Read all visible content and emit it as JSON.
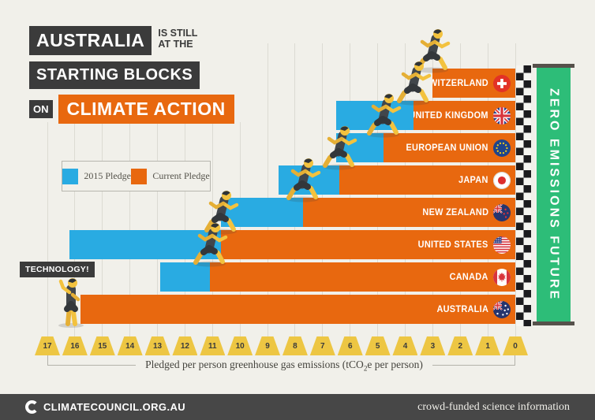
{
  "title": {
    "box1": "AUSTRALIA",
    "tag_top": "IS STILL",
    "tag_bottom": "AT THE",
    "box2": "STARTING BLOCKS",
    "on": "ON",
    "box3": "CLIMATE ACTION"
  },
  "legend": {
    "items": [
      {
        "label": "2015 Pledge",
        "color": "#29abe2"
      },
      {
        "label": "Current Pledge",
        "color": "#e8680f"
      }
    ]
  },
  "chart_data": {
    "type": "bar",
    "orientation": "horizontal",
    "title": "Australia is still at the starting blocks on climate action",
    "xlabel": "Pledged per person greenhouse gas emissions (tCO2e per person)",
    "x_axis": {
      "ticks": [
        17,
        16,
        15,
        14,
        13,
        12,
        11,
        10,
        9,
        8,
        7,
        6,
        5,
        4,
        3,
        2,
        1,
        0
      ],
      "reversed": true,
      "range": [
        17,
        0
      ]
    },
    "grid": true,
    "legend_position": "upper-left",
    "categories": [
      "Switzerland",
      "United Kingdom",
      "European Union",
      "Japan",
      "New Zealand",
      "United States",
      "Canada",
      "Australia"
    ],
    "series": [
      {
        "name": "2015 Pledge",
        "color": "#29abe2",
        "values": [
          null,
          6.5,
          6.5,
          8.6,
          10.7,
          16.2,
          12.9,
          null
        ]
      },
      {
        "name": "Current Pledge",
        "color": "#e8680f",
        "values": [
          3.0,
          3.7,
          4.8,
          6.4,
          7.7,
          10.7,
          11.1,
          15.8
        ]
      }
    ],
    "finish_line_label": "ZERO EMISSIONS FUTURE"
  },
  "countries": [
    {
      "label": "SWITZERLAND",
      "flag": "switzerland",
      "runner": true
    },
    {
      "label": "UNITED KINGDOM",
      "flag": "united-kingdom",
      "runner": true
    },
    {
      "label": "EUROPEAN UNION",
      "flag": "european-union",
      "runner": true
    },
    {
      "label": "JAPAN",
      "flag": "japan",
      "runner": true
    },
    {
      "label": "NEW ZEALAND",
      "flag": "new-zealand",
      "runner": true
    },
    {
      "label": "UNITED STATES",
      "flag": "united-states",
      "runner": true
    },
    {
      "label": "CANADA",
      "flag": "canada",
      "runner": true
    },
    {
      "label": "AUSTRALIA",
      "flag": "australia",
      "runner": false
    }
  ],
  "axis_label": {
    "pre": "Pledged per person greenhouse gas emissions (tCO",
    "sub": "2",
    "post": "e per person)"
  },
  "banner": {
    "text": "ZERO EMISSIONS FUTURE",
    "color": "#2dbd78"
  },
  "bubble": {
    "text": "TECHNOLOGY!"
  },
  "footer": {
    "brand": "CLIMATECOUNCIL.ORG.AU",
    "tagline": "crowd-funded science information"
  },
  "colors": {
    "background": "#f1f0ea",
    "dark_box": "#3b3b3b",
    "tick_marker": "#edc643",
    "footer_bar": "#474747"
  }
}
